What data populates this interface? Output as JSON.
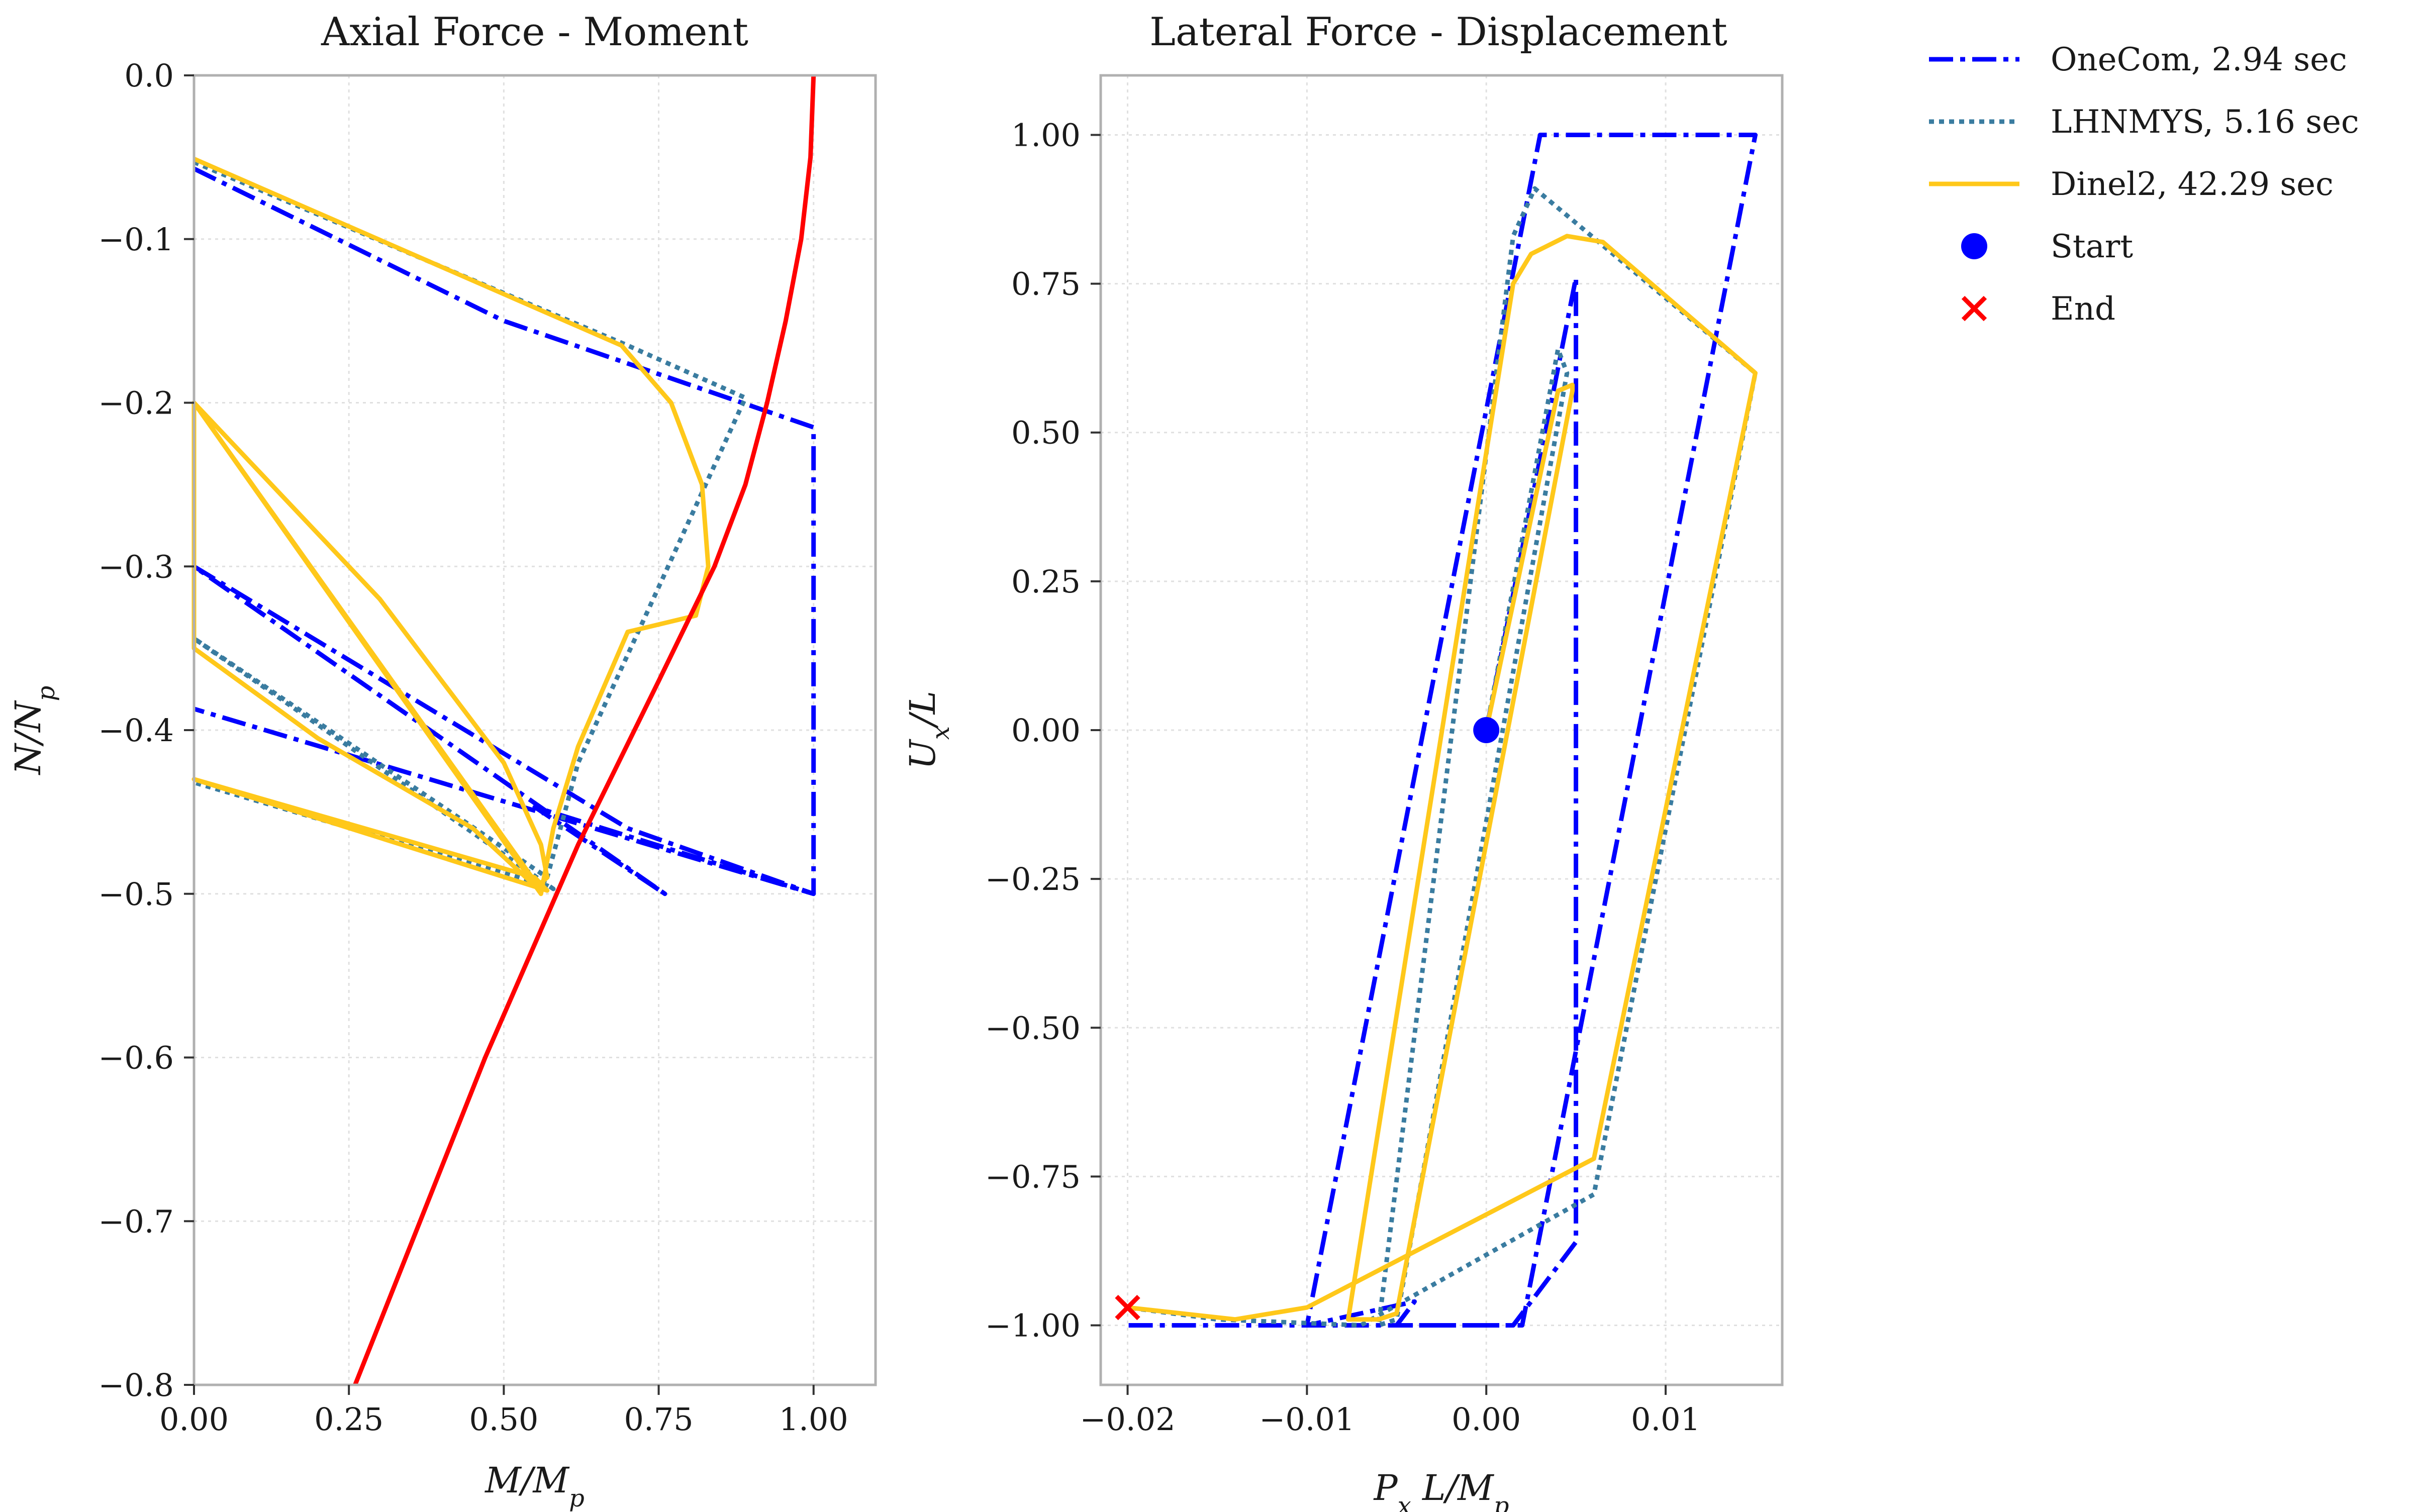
{
  "chart_data": [
    {
      "type": "line",
      "title": "Axial Force - Moment",
      "xlabel": "M/M_p",
      "ylabel": "N/N_p",
      "xlim": [
        0.0,
        1.1
      ],
      "ylim": [
        -0.8,
        0.0
      ],
      "xticks": [
        0.0,
        0.25,
        0.5,
        0.75,
        1.0
      ],
      "xtick_labels": [
        "0.00",
        "0.25",
        "0.50",
        "0.75",
        "1.00"
      ],
      "yticks": [
        0.0,
        -0.1,
        -0.2,
        -0.3,
        -0.4,
        -0.5,
        -0.6,
        -0.7,
        -0.8
      ],
      "ytick_labels": [
        "0.0",
        "−0.1",
        "−0.2",
        "−0.3",
        "−0.4",
        "−0.5",
        "−0.6",
        "−0.7",
        "−0.8"
      ],
      "grid": true,
      "series": [
        {
          "name": "OneCom, 2.94 sec",
          "color": "#0000ff",
          "style": "dashdot",
          "x": [
            0,
            0.5,
            1.0,
            1.0,
            0.55,
            0.76,
            0.43,
            0.0,
            0.7,
            1.0,
            0.0
          ],
          "y": [
            -0.057,
            -0.15,
            -0.215,
            -0.5,
            -0.447,
            -0.5,
            -0.413,
            -0.3,
            -0.46,
            -0.5,
            -0.387
          ]
        },
        {
          "name": "LHNMYS, 5.16 sec",
          "color": "#3a7ca0",
          "style": "dotted",
          "x": [
            0,
            0.7,
            0.89,
            0.62,
            0.57,
            0.0,
            0.58,
            0.57,
            0.0
          ],
          "y": [
            -0.053,
            -0.165,
            -0.197,
            -0.42,
            -0.49,
            -0.344,
            -0.497,
            -0.495,
            -0.432
          ]
        },
        {
          "name": "Dinel2, 42.29 sec",
          "color": "#ffc81a",
          "style": "solid",
          "x": [
            0,
            0.69,
            0.77,
            0.82,
            0.83,
            0.81,
            0.7,
            0.62,
            0.58,
            0.56,
            0.0,
            0.3,
            0.5,
            0.56,
            0.57,
            0.555,
            0.0,
            0.0,
            0.2,
            0.45,
            0.55,
            0.57,
            0.0,
            0.55,
            0.57
          ],
          "y": [
            -0.051,
            -0.165,
            -0.2,
            -0.25,
            -0.3,
            -0.33,
            -0.34,
            -0.41,
            -0.46,
            -0.5,
            -0.2,
            -0.32,
            -0.42,
            -0.47,
            -0.49,
            -0.495,
            -0.2,
            -0.35,
            -0.405,
            -0.46,
            -0.495,
            -0.498,
            -0.43,
            -0.49,
            -0.498
          ]
        },
        {
          "name": "",
          "color": "#ff0000",
          "style": "solid",
          "x": [
            1.0,
            0.995,
            0.98,
            0.955,
            0.925,
            0.89,
            0.84,
            0.75,
            0.62,
            0.47,
            0.26
          ],
          "y": [
            0.0,
            -0.05,
            -0.1,
            -0.15,
            -0.2,
            -0.25,
            -0.3,
            -0.37,
            -0.47,
            -0.6,
            -0.8
          ]
        }
      ]
    },
    {
      "type": "line",
      "title": "Lateral Force - Displacement",
      "xlabel": "P_x L/M_p",
      "ylabel": "U_x/L",
      "xlim": [
        -0.0215,
        0.0165
      ],
      "ylim": [
        -1.1,
        1.1
      ],
      "xticks": [
        -0.02,
        -0.01,
        0.0,
        0.01
      ],
      "xtick_labels": [
        "−0.02",
        "−0.01",
        "0.00",
        "0.01"
      ],
      "yticks": [
        1.0,
        0.75,
        0.5,
        0.25,
        0.0,
        -0.25,
        -0.5,
        -0.75,
        -1.0
      ],
      "ytick_labels": [
        "1.00",
        "0.75",
        "0.50",
        "0.25",
        "0.00",
        "−0.25",
        "−0.50",
        "−0.75",
        "−1.00"
      ],
      "grid": true,
      "series": [
        {
          "name": "OneCom, 2.94 sec",
          "color": "#0000ff",
          "style": "dashdot",
          "x": [
            0,
            0.005,
            0.005,
            0.0015,
            -0.005,
            -0.004,
            -0.004,
            -0.01,
            0.003,
            0.015,
            0.002,
            -0.02
          ],
          "y": [
            0,
            0.76,
            -0.86,
            -1.0,
            -1.0,
            -0.96,
            -0.96,
            -1.0,
            1.0,
            1.0,
            -1.0,
            -1.0
          ]
        },
        {
          "name": "LHNMYS, 5.16 sec",
          "color": "#3a7ca0",
          "style": "dotted",
          "x": [
            0,
            0.004,
            0.0045,
            0.0045,
            -0.005,
            -0.006,
            0.0015,
            0.0027,
            0.015,
            0.006,
            -0.007,
            -0.015,
            -0.02
          ],
          "y": [
            0,
            0.64,
            0.6,
            0.6,
            -0.99,
            -1.0,
            0.83,
            0.91,
            0.6,
            -0.78,
            -1.0,
            -0.99,
            -0.97
          ],
          "cut": [
            1.0,
            0.0
          ]
        },
        {
          "name": "Dinel2, 42.29 sec",
          "color": "#ffc81a",
          "style": "solid",
          "x": [
            0,
            0.004,
            0.0048,
            0.0048,
            -0.005,
            -0.006,
            -0.0077,
            0.0015,
            0.0025,
            0.0045,
            0.0065,
            0.015,
            0.006,
            -0.01,
            -0.014,
            -0.02
          ],
          "y": [
            0,
            0.57,
            0.58,
            0.57,
            -0.98,
            -0.99,
            -0.99,
            0.75,
            0.8,
            0.83,
            0.82,
            0.6,
            -0.72,
            -0.97,
            -0.99,
            -0.97
          ]
        }
      ],
      "markers": [
        {
          "name": "Start",
          "x": 0.0,
          "y": 0.0,
          "color": "#0000ff",
          "shape": "circle"
        },
        {
          "name": "End",
          "x": -0.02,
          "y": -0.97,
          "color": "#ff0000",
          "shape": "x"
        }
      ]
    }
  ],
  "legend": {
    "placement": "right",
    "entries": [
      {
        "label": "OneCom, 2.94 sec",
        "color": "#0000ff",
        "style": "dashdot"
      },
      {
        "label": "LHNMYS, 5.16 sec",
        "color": "#3a7ca0",
        "style": "dotted"
      },
      {
        "label": "Dinel2, 42.29 sec",
        "color": "#ffc81a",
        "style": "solid"
      },
      {
        "label": "Start",
        "color": "#0000ff",
        "style": "circle"
      },
      {
        "label": "End",
        "color": "#ff0000",
        "style": "x"
      }
    ]
  }
}
